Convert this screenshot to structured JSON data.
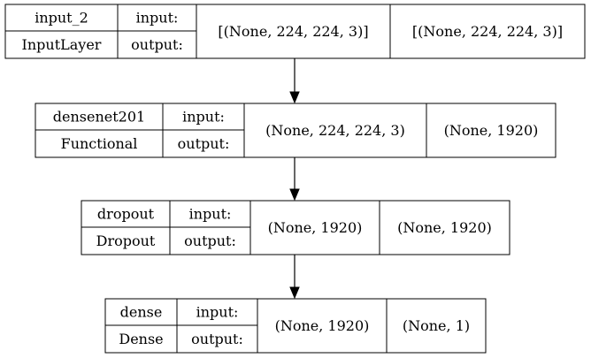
{
  "nodes": [
    {
      "name": "input_2",
      "type": "InputLayer",
      "in_label": "input:",
      "out_label": "output:",
      "input_shape": "[(None, 224, 224, 3)]",
      "output_shape": "[(None, 224, 224, 3)]"
    },
    {
      "name": "densenet201",
      "type": "Functional",
      "in_label": "input:",
      "out_label": "output:",
      "input_shape": "(None, 224, 224, 3)",
      "output_shape": "(None, 1920)"
    },
    {
      "name": "dropout",
      "type": "Dropout",
      "in_label": "input:",
      "out_label": "output:",
      "input_shape": "(None, 1920)",
      "output_shape": "(None, 1920)"
    },
    {
      "name": "dense",
      "type": "Dense",
      "in_label": "input:",
      "out_label": "output:",
      "input_shape": "(None, 1920)",
      "output_shape": "(None, 1)"
    }
  ],
  "edges": [
    {
      "from": "input_2",
      "to": "densenet201"
    },
    {
      "from": "densenet201",
      "to": "dropout"
    },
    {
      "from": "dropout",
      "to": "dense"
    }
  ]
}
